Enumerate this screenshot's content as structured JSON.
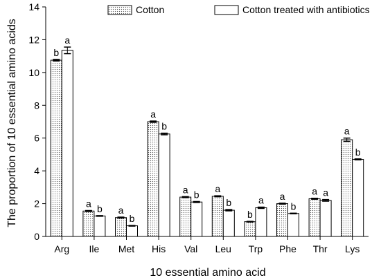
{
  "chart_data": {
    "type": "bar",
    "title": "",
    "xlabel": "10 essential amino acid",
    "ylabel": "The proportion of 10 essential amino acids",
    "ylim": [
      0,
      14
    ],
    "yticks": [
      0,
      2,
      4,
      6,
      8,
      10,
      12,
      14
    ],
    "categories": [
      "Arg",
      "Ile",
      "Met",
      "His",
      "Val",
      "Leu",
      "Trp",
      "Phe",
      "Thr",
      "Lys"
    ],
    "legend_position": "top",
    "grid": false,
    "series": [
      {
        "name": "Cotton",
        "pattern": "dotted",
        "values": [
          10.75,
          1.55,
          1.15,
          7.0,
          2.4,
          2.45,
          0.9,
          2.0,
          2.3,
          5.9
        ],
        "errors": [
          0.05,
          0.03,
          0.03,
          0.04,
          0.03,
          0.03,
          0.02,
          0.03,
          0.03,
          0.1
        ],
        "significance": [
          "b",
          "a",
          "a",
          "a",
          "a",
          "a",
          "b",
          "a",
          "a",
          "a"
        ]
      },
      {
        "name": "Cotton treated with antibiotics",
        "pattern": "solid",
        "values": [
          11.35,
          1.25,
          0.65,
          6.25,
          2.1,
          1.6,
          1.75,
          1.4,
          2.2,
          4.7
        ],
        "errors": [
          0.2,
          0.02,
          0.02,
          0.05,
          0.03,
          0.04,
          0.04,
          0.02,
          0.05,
          0.03
        ],
        "significance": [
          "a",
          "b",
          "b",
          "b",
          "b",
          "b",
          "a",
          "b",
          "a",
          "b"
        ]
      }
    ],
    "colors": {
      "fill": "#ffffff",
      "stroke": "#000000",
      "dots": "#555555"
    }
  }
}
